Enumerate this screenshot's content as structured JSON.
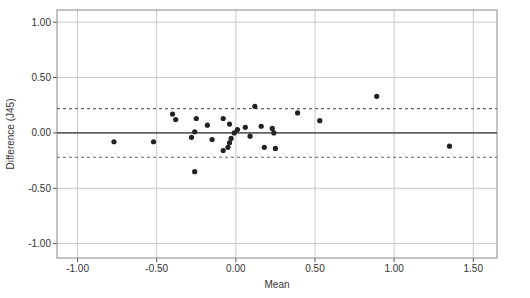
{
  "chart_data": {
    "type": "scatter",
    "x_label": "Mean",
    "y_label": "Difference (J45)",
    "x": [
      -0.77,
      -0.52,
      -0.4,
      -0.38,
      -0.25,
      -0.26,
      -0.28,
      -0.26,
      -0.18,
      -0.15,
      -0.08,
      -0.04,
      -0.08,
      -0.05,
      -0.04,
      -0.03,
      -0.01,
      0.01,
      0.06,
      0.09,
      0.12,
      0.16,
      0.18,
      0.23,
      0.24,
      0.25,
      0.39,
      0.53,
      0.89,
      1.35
    ],
    "y": [
      -0.08,
      -0.08,
      0.17,
      0.12,
      0.13,
      0.01,
      -0.04,
      -0.35,
      0.07,
      -0.06,
      0.13,
      0.08,
      -0.16,
      -0.13,
      -0.09,
      -0.05,
      0.0,
      0.03,
      0.05,
      -0.03,
      0.24,
      0.06,
      -0.13,
      0.04,
      0.0,
      -0.14,
      0.18,
      0.11,
      0.33,
      -0.12
    ],
    "color": "#222222",
    "marker": "circle",
    "mean_difference": 0,
    "limits_of_agreement": [
      -0.22,
      0.22
    ],
    "xlim": [
      -1.13,
      1.65
    ],
    "ylim": [
      -1.13,
      1.11
    ],
    "xticks": [
      {
        "value": -1,
        "label": "-1.00"
      },
      {
        "value": -0.5,
        "label": "-0.50"
      },
      {
        "value": 0,
        "label": "0.00"
      },
      {
        "value": 0.5,
        "label": "0.50"
      },
      {
        "value": 1,
        "label": "1.00"
      },
      {
        "value": 1.5,
        "label": "1.50"
      }
    ],
    "yticks": [
      {
        "value": -1,
        "label": "-1.00"
      },
      {
        "value": -0.5,
        "label": "-0.50"
      },
      {
        "value": 0,
        "label": "0.00"
      },
      {
        "value": 0.5,
        "label": "0.50"
      },
      {
        "value": 1,
        "label": "1.00"
      }
    ],
    "grid": true
  }
}
